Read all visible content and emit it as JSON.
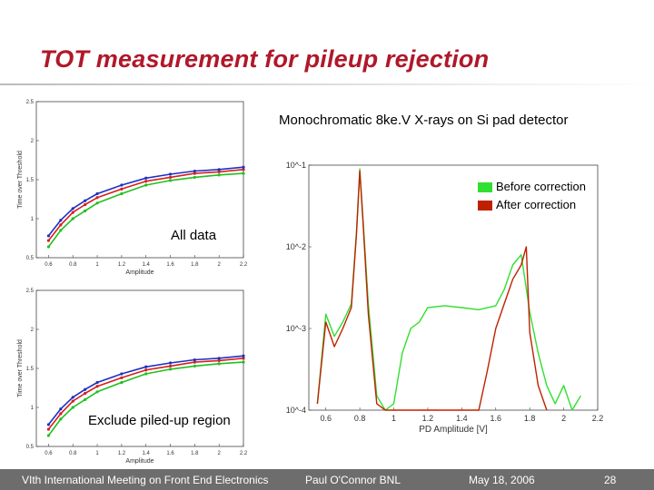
{
  "slide": {
    "title": "TOT measurement for pileup rejection",
    "subtitle": "Monochromatic 8ke.V X-rays on Si pad detector",
    "label_all": "All data",
    "label_excl": "Exclude piled-up region",
    "footer": {
      "meeting": "VIth International Meeting on Front End Electronics",
      "author": "Paul O'Connor BNL",
      "date": "May 18, 2006",
      "page": "28"
    }
  },
  "chart_data": [
    {
      "id": "tot-all",
      "type": "scatter",
      "xlabel": "Amplitude",
      "ylabel": "Time over Threshold",
      "xlim": [
        0.5,
        2.2
      ],
      "ylim": [
        0.5,
        2.5
      ],
      "xticks": [
        "0.6",
        "0.8",
        "1",
        "1.2",
        "1.4",
        "1.6",
        "1.8",
        "2",
        "2.2"
      ],
      "yticks": [
        "0.5",
        "1",
        "1.5",
        "2",
        "2.5"
      ],
      "series": [
        {
          "color": "#d42020",
          "x": [
            0.6,
            0.7,
            0.8,
            0.9,
            1.0,
            1.2,
            1.4,
            1.6,
            1.8,
            2.0,
            2.2
          ],
          "y": [
            0.72,
            0.92,
            1.08,
            1.18,
            1.27,
            1.38,
            1.48,
            1.53,
            1.58,
            1.6,
            1.63
          ]
        },
        {
          "color": "#20c020",
          "x": [
            0.6,
            0.7,
            0.8,
            0.9,
            1.0,
            1.2,
            1.4,
            1.6,
            1.8,
            2.0,
            2.2
          ],
          "y": [
            0.64,
            0.85,
            1.0,
            1.1,
            1.2,
            1.32,
            1.43,
            1.49,
            1.53,
            1.56,
            1.58
          ]
        },
        {
          "color": "#2030c0",
          "x": [
            0.6,
            0.7,
            0.8,
            0.9,
            1.0,
            1.2,
            1.4,
            1.6,
            1.8,
            2.0,
            2.2
          ],
          "y": [
            0.78,
            0.98,
            1.13,
            1.23,
            1.32,
            1.43,
            1.52,
            1.57,
            1.61,
            1.63,
            1.66
          ]
        }
      ]
    },
    {
      "id": "tot-excl",
      "type": "scatter",
      "xlabel": "Amplitude",
      "ylabel": "Time over Threshold",
      "xlim": [
        0.5,
        2.2
      ],
      "ylim": [
        0.5,
        2.5
      ],
      "xticks": [
        "0.6",
        "0.8",
        "1",
        "1.2",
        "1.4",
        "1.6",
        "1.8",
        "2",
        "2.2"
      ],
      "yticks": [
        "0.5",
        "1",
        "1.5",
        "2",
        "2.5"
      ],
      "series": [
        {
          "color": "#d42020",
          "x": [
            0.6,
            0.7,
            0.8,
            0.9,
            1.0,
            1.2,
            1.4,
            1.6,
            1.8,
            2.0,
            2.2
          ],
          "y": [
            0.72,
            0.92,
            1.08,
            1.18,
            1.27,
            1.38,
            1.48,
            1.53,
            1.58,
            1.6,
            1.63
          ]
        },
        {
          "color": "#20c020",
          "x": [
            0.6,
            0.7,
            0.8,
            0.9,
            1.0,
            1.2,
            1.4,
            1.6,
            1.8,
            2.0,
            2.2
          ],
          "y": [
            0.64,
            0.85,
            1.0,
            1.1,
            1.2,
            1.32,
            1.43,
            1.49,
            1.53,
            1.56,
            1.58
          ]
        },
        {
          "color": "#2030c0",
          "x": [
            0.6,
            0.7,
            0.8,
            0.9,
            1.0,
            1.2,
            1.4,
            1.6,
            1.8,
            2.0,
            2.2
          ],
          "y": [
            0.78,
            0.98,
            1.13,
            1.23,
            1.32,
            1.43,
            1.52,
            1.57,
            1.61,
            1.63,
            1.66
          ]
        }
      ]
    },
    {
      "id": "spectrum",
      "type": "line",
      "xlabel": "PD Amplitude [V]",
      "ylabel": "",
      "yscale": "log",
      "xlim": [
        0.5,
        2.2
      ],
      "ylim": [
        0.0001,
        0.1
      ],
      "xticks": [
        "0.6",
        "0.8",
        "1",
        "1.2",
        "1.4",
        "1.6",
        "1.8",
        "2",
        "2.2"
      ],
      "yticks": [
        "10^-1",
        "10^-2",
        "10^-3",
        "10^-4"
      ],
      "series": [
        {
          "name": "Before correction",
          "color": "#30e030",
          "x": [
            0.55,
            0.6,
            0.65,
            0.7,
            0.75,
            0.78,
            0.8,
            0.82,
            0.85,
            0.9,
            0.95,
            1.0,
            1.05,
            1.1,
            1.15,
            1.2,
            1.3,
            1.4,
            1.5,
            1.6,
            1.65,
            1.7,
            1.75,
            1.8,
            1.85,
            1.9,
            1.95,
            2.0,
            2.05,
            2.1
          ],
          "y": [
            0.00012,
            0.0015,
            0.0008,
            0.0012,
            0.002,
            0.015,
            0.09,
            0.02,
            0.002,
            0.00015,
            0.0001,
            0.00012,
            0.0005,
            0.001,
            0.0012,
            0.0018,
            0.0019,
            0.0018,
            0.0017,
            0.0019,
            0.003,
            0.006,
            0.008,
            0.0016,
            0.0005,
            0.0002,
            0.00012,
            0.0002,
            0.0001,
            0.00015
          ]
        },
        {
          "name": "After correction",
          "color": "#c02000",
          "x": [
            0.55,
            0.6,
            0.65,
            0.7,
            0.75,
            0.78,
            0.8,
            0.82,
            0.85,
            0.9,
            0.95,
            1.0,
            1.05,
            1.1,
            1.3,
            1.5,
            1.55,
            1.6,
            1.65,
            1.7,
            1.75,
            1.78,
            1.8,
            1.85,
            1.9
          ],
          "y": [
            0.00012,
            0.0012,
            0.0006,
            0.001,
            0.0018,
            0.014,
            0.085,
            0.018,
            0.0015,
            0.00012,
            0.0001,
            0.0001,
            0.0001,
            0.0001,
            0.0001,
            0.0001,
            0.0003,
            0.001,
            0.002,
            0.004,
            0.006,
            0.01,
            0.0009,
            0.0002,
            0.0001
          ]
        }
      ]
    }
  ]
}
